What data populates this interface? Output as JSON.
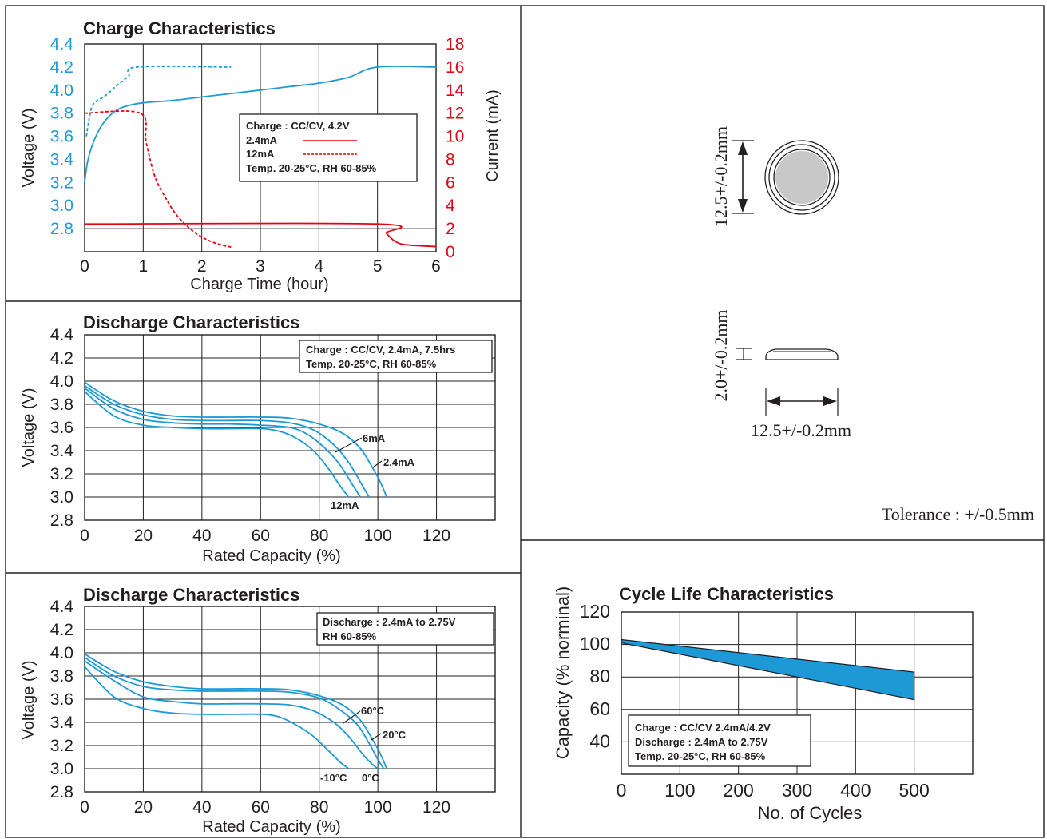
{
  "colors": {
    "voltage": "#1d9ad6",
    "current": "#e60012",
    "frame": "#231f20",
    "grid": "#231f20",
    "fill": "#1d9ad6"
  },
  "charge_chart": {
    "title": "Charge Characteristics",
    "xlabel": "Charge Time (hour)",
    "ylabel_left": "Voltage (V)",
    "ylabel_right": "Current (mA)",
    "legend": {
      "title": "Charge : CC/CV, 4.2V",
      "item1": "2.4mA",
      "item2": "12mA",
      "conditions": "Temp. 20-25°C, RH 60-85%"
    }
  },
  "discharge_rate_chart": {
    "title": "Discharge Characteristics",
    "xlabel": "Rated Capacity (%)",
    "ylabel": "Voltage (V)",
    "legend": {
      "line1": "Charge : CC/CV, 2.4mA, 7.5hrs",
      "line2": "Temp. 20-25°C, RH 60-85%"
    },
    "labels": {
      "a": "6mA",
      "b": "2.4mA",
      "c": "12mA"
    }
  },
  "discharge_temp_chart": {
    "title": "Discharge Characteristics",
    "xlabel": "Rated Capacity (%)",
    "ylabel": "Voltage (V)",
    "legend": {
      "line1": "Discharge : 2.4mA to 2.75V",
      "line2": "RH 60-85%"
    },
    "labels": {
      "a": "60°C",
      "b": "20°C",
      "c": "-10°C",
      "d": "0°C"
    }
  },
  "cycle_chart": {
    "title": "Cycle Life Characteristics",
    "xlabel": "No. of Cycles",
    "ylabel": "Capacity (% norminal)",
    "legend": {
      "line1": "Charge : CC/CV 2.4mA/4.2V",
      "line2": "Discharge : 2.4mA to 2.75V",
      "line3": "Temp. 20-25°C, RH 60-85%"
    }
  },
  "dimensions": {
    "diameter_vertical": "12.5+/-0.2mm",
    "thickness": "2.0+/-0.2mm",
    "diameter_horizontal": "12.5+/-0.2mm",
    "tolerance": "Tolerance : +/-0.5mm"
  },
  "chart_data": [
    {
      "type": "line",
      "title": "Charge Characteristics",
      "xlabel": "Charge Time (hour)",
      "ylabel": "Voltage (V)",
      "y2label": "Current (mA)",
      "xlim": [
        0,
        6
      ],
      "ylim": [
        2.6,
        4.4
      ],
      "y2lim": [
        0,
        18
      ],
      "xticks": [
        0,
        1,
        2,
        3,
        4,
        5,
        6
      ],
      "yticks": [
        2.8,
        3.0,
        3.2,
        3.4,
        3.6,
        3.8,
        4.0,
        4.2,
        4.4
      ],
      "y2ticks": [
        0,
        2,
        4,
        6,
        8,
        10,
        12,
        14,
        16,
        18
      ],
      "grid": true,
      "series": [
        {
          "name": "2.4mA",
          "axis": "voltage",
          "style": "solid",
          "x": [
            0,
            0.05,
            0.15,
            0.3,
            0.5,
            0.7,
            1.0,
            1.5,
            2.0,
            2.5,
            3.0,
            3.5,
            4.0,
            4.5,
            5.0,
            6.0
          ],
          "y": [
            3.2,
            3.38,
            3.55,
            3.7,
            3.81,
            3.86,
            3.89,
            3.91,
            3.94,
            3.97,
            4.0,
            4.03,
            4.06,
            4.11,
            4.2,
            4.2
          ]
        },
        {
          "name": "2.4mA",
          "axis": "current",
          "style": "solid",
          "x": [
            0,
            5.0,
            5.15,
            5.3,
            5.5,
            6.0
          ],
          "y": [
            2.4,
            2.4,
            1.6,
            0.9,
            0.6,
            0.45
          ]
        },
        {
          "name": "12mA",
          "axis": "voltage",
          "style": "dashed",
          "x": [
            0.03,
            0.08,
            0.15,
            0.35,
            0.55,
            0.75,
            0.9,
            2.5
          ],
          "y": [
            3.6,
            3.76,
            3.88,
            3.95,
            4.04,
            4.12,
            4.2,
            4.2
          ]
        },
        {
          "name": "12mA",
          "axis": "current",
          "style": "dashed",
          "x": [
            0,
            0.95,
            1.05,
            1.2,
            1.4,
            1.6,
            1.9,
            2.2,
            2.5
          ],
          "y": [
            12,
            12,
            9.5,
            6.5,
            4.5,
            3.0,
            1.6,
            0.8,
            0.4
          ]
        }
      ]
    },
    {
      "type": "line",
      "title": "Discharge Characteristics",
      "xlabel": "Rated Capacity (%)",
      "ylabel": "Voltage (V)",
      "xlim": [
        0,
        140
      ],
      "ylim": [
        2.8,
        4.4
      ],
      "xticks": [
        0,
        20,
        40,
        60,
        80,
        100,
        120
      ],
      "yticks": [
        2.8,
        3.0,
        3.2,
        3.4,
        3.6,
        3.8,
        4.0,
        4.2,
        4.4
      ],
      "grid": true,
      "series": [
        {
          "name": "2.4mA",
          "x": [
            0,
            10,
            20,
            30,
            40,
            50,
            60,
            70,
            80,
            88,
            94,
            98,
            101,
            103
          ],
          "y": [
            3.99,
            3.83,
            3.74,
            3.7,
            3.69,
            3.69,
            3.69,
            3.68,
            3.63,
            3.55,
            3.42,
            3.26,
            3.12,
            3.0
          ]
        },
        {
          "name": "6mA",
          "x": [
            0,
            10,
            20,
            30,
            40,
            50,
            60,
            70,
            78,
            85,
            90,
            94,
            97
          ],
          "y": [
            3.96,
            3.8,
            3.71,
            3.67,
            3.66,
            3.66,
            3.66,
            3.64,
            3.58,
            3.45,
            3.3,
            3.13,
            3.0
          ]
        },
        {
          "name": "12mA",
          "x": [
            0,
            10,
            20,
            30,
            40,
            50,
            60,
            66,
            72,
            78,
            83,
            87,
            90
          ],
          "y": [
            3.91,
            3.7,
            3.62,
            3.6,
            3.59,
            3.59,
            3.59,
            3.57,
            3.51,
            3.4,
            3.25,
            3.1,
            3.0
          ]
        },
        {
          "name": "",
          "x": [
            0,
            10,
            20,
            30,
            40,
            50,
            60,
            70,
            76,
            82,
            87,
            91,
            94
          ],
          "y": [
            3.94,
            3.76,
            3.67,
            3.64,
            3.63,
            3.63,
            3.62,
            3.6,
            3.54,
            3.42,
            3.28,
            3.12,
            3.0
          ]
        }
      ]
    },
    {
      "type": "line",
      "title": "Discharge Characteristics",
      "xlabel": "Rated Capacity (%)",
      "ylabel": "Voltage (V)",
      "xlim": [
        0,
        140
      ],
      "ylim": [
        2.8,
        4.4
      ],
      "xticks": [
        0,
        20,
        40,
        60,
        80,
        100,
        120
      ],
      "yticks": [
        2.8,
        3.0,
        3.2,
        3.4,
        3.6,
        3.8,
        4.0,
        4.2,
        4.4
      ],
      "grid": true,
      "series": [
        {
          "name": "60°C",
          "x": [
            0,
            10,
            20,
            30,
            40,
            50,
            60,
            70,
            80,
            88,
            94,
            98,
            101,
            103
          ],
          "y": [
            3.99,
            3.84,
            3.75,
            3.71,
            3.69,
            3.69,
            3.69,
            3.68,
            3.63,
            3.55,
            3.42,
            3.26,
            3.12,
            3.0
          ]
        },
        {
          "name": "20°C",
          "x": [
            0,
            10,
            20,
            30,
            40,
            50,
            60,
            70,
            80,
            87,
            93,
            97,
            100,
            102
          ],
          "y": [
            3.96,
            3.8,
            3.71,
            3.68,
            3.67,
            3.67,
            3.67,
            3.66,
            3.61,
            3.51,
            3.38,
            3.22,
            3.08,
            3.0
          ]
        },
        {
          "name": "0°C",
          "x": [
            0,
            10,
            20,
            30,
            40,
            50,
            60,
            70,
            78,
            85,
            90,
            95,
            98,
            100
          ],
          "y": [
            3.93,
            3.76,
            3.62,
            3.58,
            3.56,
            3.56,
            3.56,
            3.55,
            3.5,
            3.4,
            3.28,
            3.12,
            3.04,
            3.0
          ]
        },
        {
          "name": "-10°C",
          "x": [
            0,
            10,
            20,
            30,
            40,
            50,
            60,
            66,
            72,
            78,
            83,
            87,
            90
          ],
          "y": [
            3.88,
            3.62,
            3.52,
            3.48,
            3.47,
            3.47,
            3.47,
            3.45,
            3.38,
            3.28,
            3.16,
            3.06,
            3.0
          ]
        }
      ]
    },
    {
      "type": "area",
      "title": "Cycle Life Characteristics",
      "xlabel": "No. of Cycles",
      "ylabel": "Capacity (% norminal)",
      "xlim": [
        0,
        600
      ],
      "ylim": [
        20,
        120
      ],
      "xticks": [
        0,
        100,
        200,
        300,
        400,
        500
      ],
      "yticks": [
        40,
        60,
        80,
        100,
        120
      ],
      "grid": true,
      "series": [
        {
          "name": "upper",
          "x": [
            0,
            500
          ],
          "y": [
            103,
            83
          ]
        },
        {
          "name": "lower",
          "x": [
            0,
            500
          ],
          "y": [
            101,
            66
          ]
        }
      ]
    }
  ]
}
